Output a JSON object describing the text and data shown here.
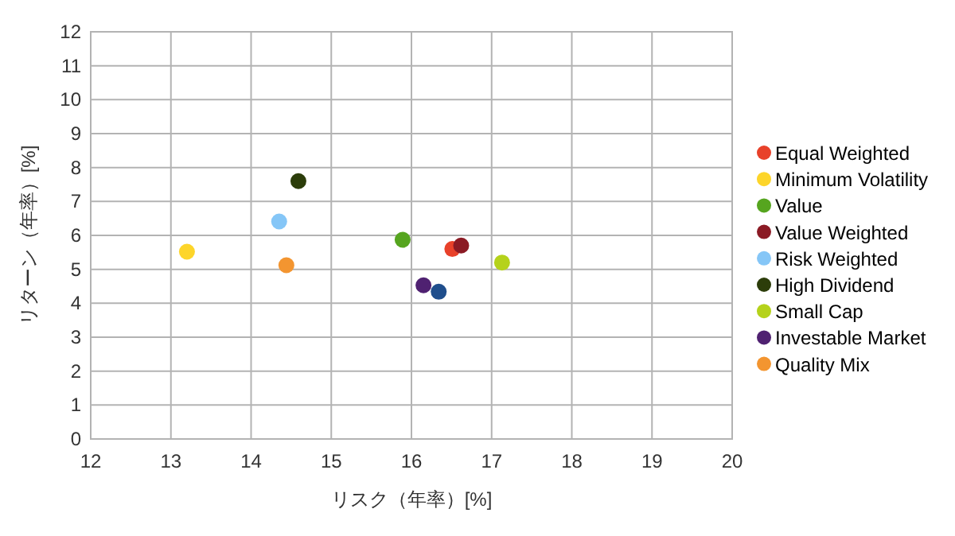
{
  "chart_data": {
    "type": "scatter",
    "xlabel": "リスク（年率）[%]",
    "ylabel": "リターン（年率）[%]",
    "xlim": [
      12,
      20
    ],
    "xticks": [
      12,
      13,
      14,
      15,
      16,
      17,
      18,
      19,
      20
    ],
    "ylim": [
      0,
      12
    ],
    "yticks": [
      0,
      1,
      2,
      3,
      4,
      5,
      6,
      7,
      8,
      9,
      10,
      11,
      12
    ],
    "grid": true,
    "legend": "right",
    "marker": "circle",
    "series": [
      {
        "color": "#1f4e8c",
        "x": [
          16.34
        ],
        "values": [
          4.34
        ]
      },
      {
        "name": "Equal Weighted",
        "color": "#e8412a",
        "x": [
          16.51
        ],
        "values": [
          5.6
        ]
      },
      {
        "name": "Minimum Volatility",
        "color": "#fdd52a",
        "x": [
          13.2
        ],
        "values": [
          5.52
        ]
      },
      {
        "name": "Value",
        "color": "#56a51f",
        "x": [
          15.89
        ],
        "values": [
          5.87
        ]
      },
      {
        "name": "Value Weighted",
        "color": "#8b1a24",
        "x": [
          16.62
        ],
        "values": [
          5.7
        ]
      },
      {
        "name": "Risk Weighted",
        "color": "#85c6f7",
        "x": [
          14.35
        ],
        "values": [
          6.41
        ]
      },
      {
        "name": "High Dividend",
        "color": "#2c3d0a",
        "x": [
          14.59
        ],
        "values": [
          7.6
        ]
      },
      {
        "name": "Small Cap",
        "color": "#b5d21b",
        "x": [
          17.13
        ],
        "values": [
          5.2
        ]
      },
      {
        "name": "Investable Market",
        "color": "#4f2171",
        "x": [
          16.15
        ],
        "values": [
          4.53
        ]
      },
      {
        "name": "Quality Mix",
        "color": "#f39530",
        "x": [
          14.44
        ],
        "values": [
          5.12
        ]
      }
    ]
  }
}
